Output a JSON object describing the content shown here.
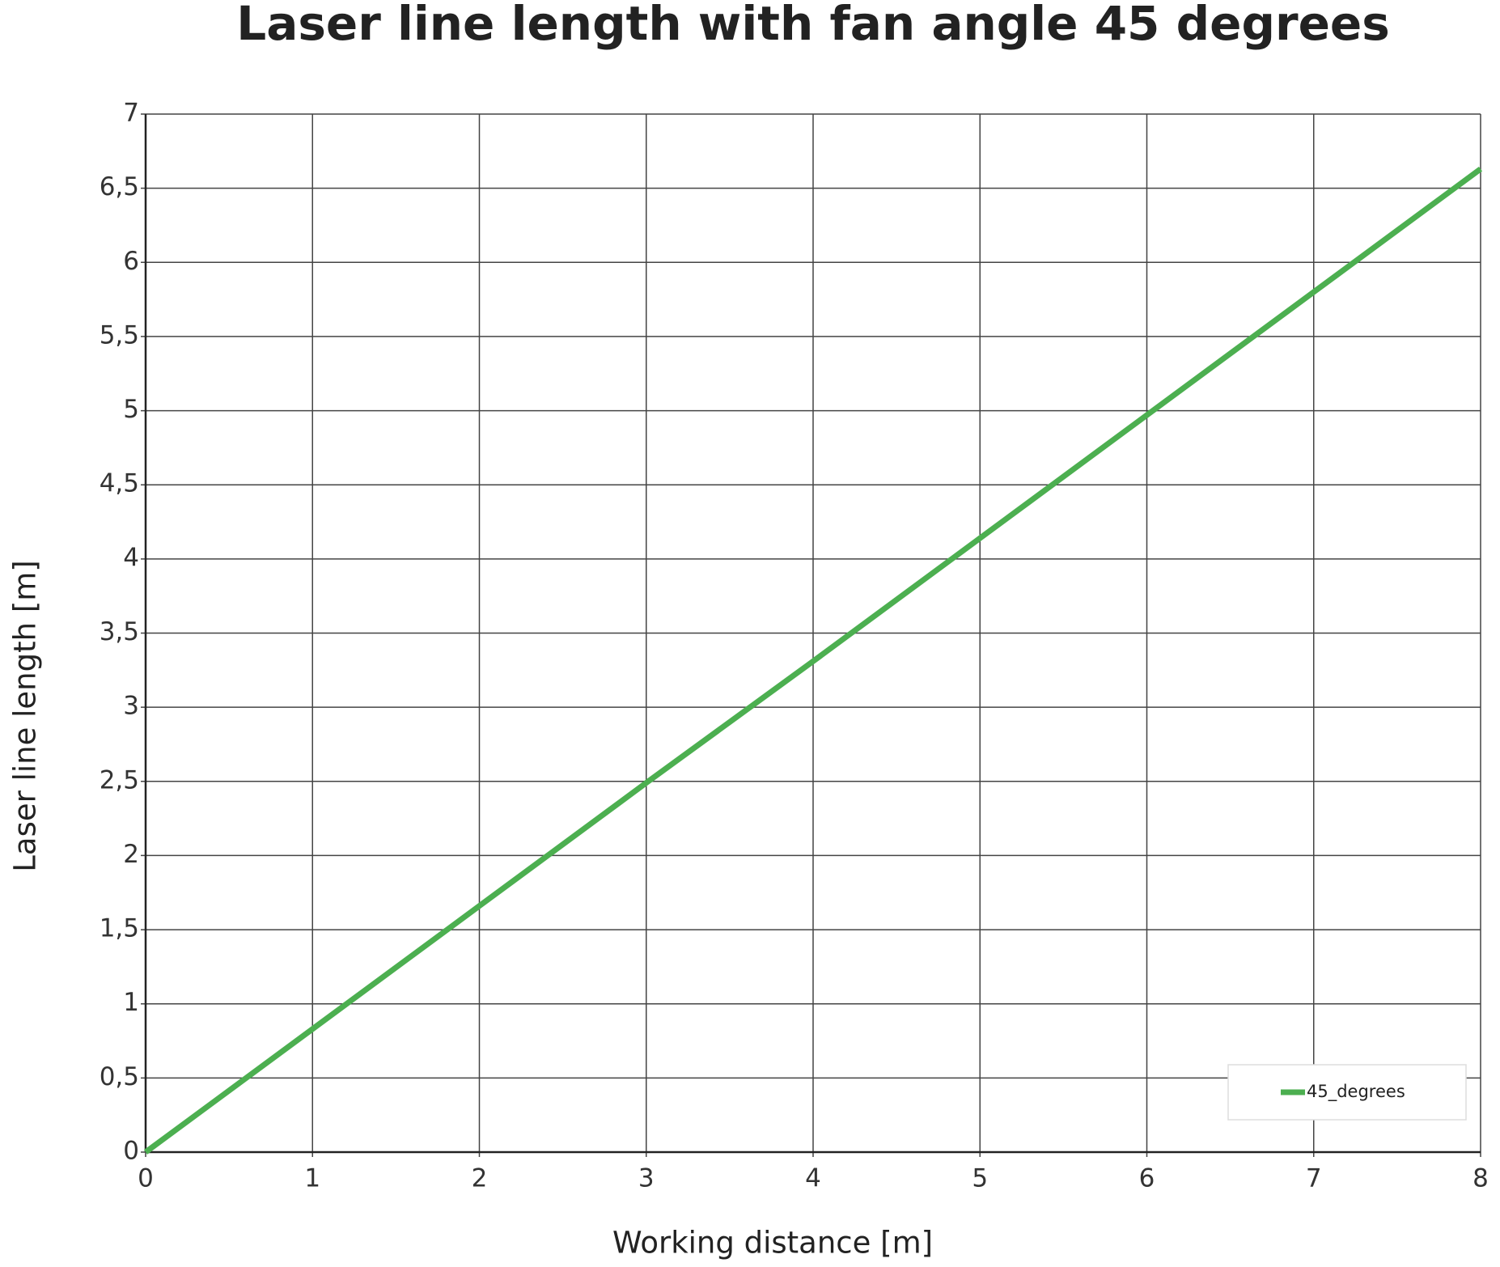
{
  "chart_data": {
    "type": "line",
    "title": "Laser line length with fan angle 45 degrees",
    "xlabel": "Working distance [m]",
    "ylabel": "Laser line length [m]",
    "x": [
      0,
      1,
      2,
      3,
      4,
      5,
      6,
      7,
      8
    ],
    "series": [
      {
        "name": "45_degrees",
        "color": "#4caf50",
        "values": [
          0,
          0.83,
          1.66,
          2.49,
          3.31,
          4.14,
          4.97,
          5.8,
          6.63
        ]
      }
    ],
    "xlim": [
      0,
      8
    ],
    "xticks": [
      0,
      1,
      2,
      3,
      4,
      5,
      6,
      7,
      8
    ],
    "ylim": [
      0,
      7
    ],
    "yticks": [
      0,
      {
        "value": 0.5,
        "label": "0,5"
      },
      1,
      {
        "value": 1.5,
        "label": "1,5"
      },
      2,
      {
        "value": 2.5,
        "label": "2,5"
      },
      3,
      {
        "value": 3.5,
        "label": "3,5"
      },
      4,
      {
        "value": 4.5,
        "label": "4,5"
      },
      5,
      {
        "value": 5.5,
        "label": "5,5"
      },
      6,
      {
        "value": 6.5,
        "label": "6,5"
      },
      7
    ],
    "grid": true,
    "legend": "lower right"
  }
}
